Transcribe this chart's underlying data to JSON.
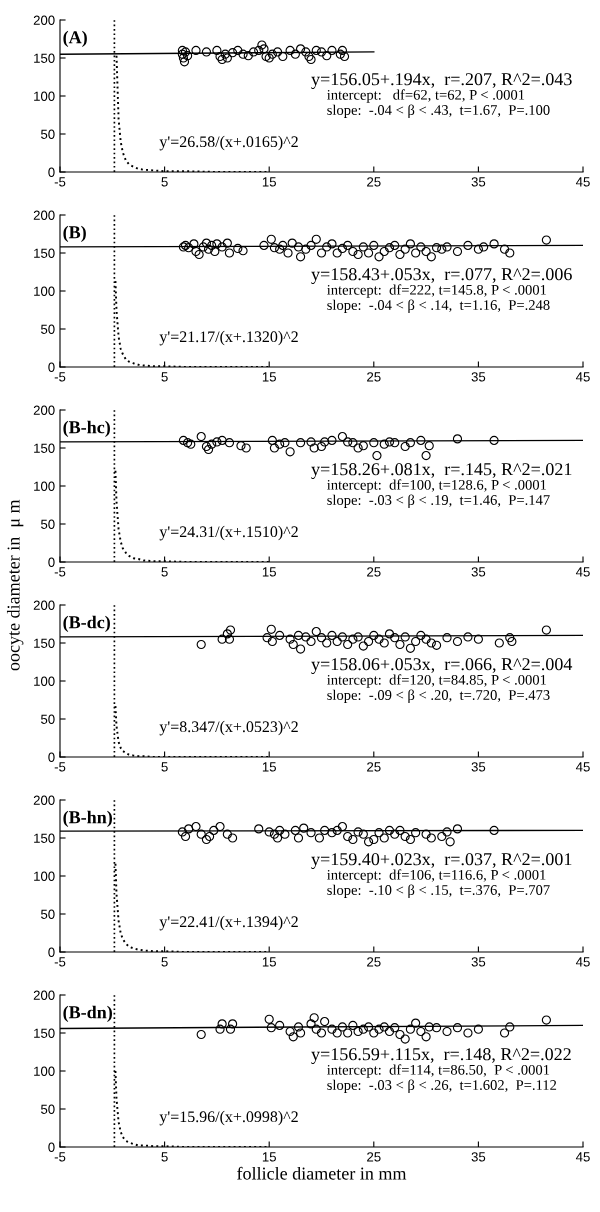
{
  "chart_data": [
    {
      "type": "scatter",
      "title": "(A)",
      "xlim": [
        -5,
        45
      ],
      "ylim": [
        0,
        200
      ],
      "xticks": [
        -5,
        5,
        15,
        25,
        35,
        45
      ],
      "yticks": [
        0,
        50,
        100,
        150,
        200
      ],
      "grid": false,
      "legend": false,
      "annotations": [
        "y=156.05+.194x,  r=.207, R^2=.043",
        "intercept:   df=62, t=62, P < .0001",
        "slope:  -.04 < β < .43,  t=1.67,  P=.100",
        "y'=26.58/(x+.0165)^2"
      ],
      "ref_lines": [
        {
          "axis": "x",
          "value": 0.2,
          "line_style": "dotted",
          "color": "#000000"
        }
      ],
      "series": [
        {
          "marker": "circle",
          "color": "#000000",
          "x": [
            6.7,
            6.7,
            6.8,
            6.9,
            7.0,
            7.2,
            8,
            9,
            10,
            10.3,
            10.5,
            10.8,
            11,
            11.5,
            12,
            12.5,
            13,
            13.5,
            14,
            14.3,
            14.5,
            14.7,
            15,
            15.3,
            15.8,
            16.3,
            17,
            17.5,
            18,
            18.5,
            18.8,
            19,
            19.5,
            20,
            20.5,
            21,
            21.8,
            22,
            22.2
          ],
          "values": [
            155,
            160,
            150,
            145,
            158,
            153,
            160,
            158,
            160,
            152,
            148,
            155,
            150,
            157,
            160,
            155,
            153,
            158,
            160,
            167,
            162,
            152,
            150,
            155,
            158,
            152,
            160,
            155,
            162,
            158,
            152,
            148,
            160,
            158,
            153,
            160,
            155,
            160,
            152
          ]
        },
        {
          "type": "line",
          "line_style": "solid",
          "color": "#000000",
          "x": [
            -5,
            25
          ],
          "values": [
            155,
            158
          ]
        },
        {
          "type": "line",
          "line_style": "dotted",
          "color": "#000000",
          "x": [
            0.4,
            0.6,
            0.8,
            1,
            1.3,
            1.6,
            2,
            2.5,
            3,
            4,
            5,
            7,
            10,
            15
          ],
          "values": [
            153,
            70,
            40,
            26,
            15,
            10,
            7,
            4,
            3,
            2,
            1,
            1,
            0,
            0
          ]
        }
      ]
    },
    {
      "type": "scatter",
      "title": "(B)",
      "xlim": [
        -5,
        45
      ],
      "ylim": [
        0,
        200
      ],
      "xticks": [
        -5,
        5,
        15,
        25,
        35,
        45
      ],
      "yticks": [
        0,
        50,
        100,
        150,
        200
      ],
      "grid": false,
      "legend": false,
      "annotations": [
        "y=158.43+.053x,  r=.077, R^2=.006",
        "intercept:  df=222, t=145.8, P < .0001",
        "slope:  -.04 < β < .14,  t=1.16,  P=.248",
        "y'=21.17/(x+.1320)^2"
      ],
      "ref_lines": [
        {
          "axis": "x",
          "value": 0.2,
          "line_style": "dotted",
          "color": "#000000"
        }
      ],
      "series": [
        {
          "marker": "circle",
          "color": "#000000",
          "x": [
            6.8,
            7,
            7.3,
            7.8,
            8,
            8.3,
            8.7,
            9,
            9.2,
            9.5,
            9.8,
            10,
            10.5,
            11,
            11.2,
            12,
            12.5,
            14.5,
            15.2,
            15.5,
            16,
            16.3,
            16.8,
            17.2,
            17.8,
            18,
            18.5,
            19,
            19.5,
            20,
            20.5,
            21,
            21.5,
            22,
            22.5,
            23,
            23.5,
            24,
            24.5,
            25,
            25.5,
            26,
            26.5,
            27,
            27.5,
            28,
            28.5,
            29,
            29.5,
            30,
            30.5,
            31,
            31.5,
            32,
            33,
            34,
            35,
            35.5,
            36.5,
            37.5,
            38,
            41.5
          ],
          "values": [
            158,
            160,
            157,
            162,
            152,
            148,
            158,
            163,
            155,
            160,
            152,
            162,
            158,
            163,
            150,
            156,
            153,
            160,
            168,
            157,
            155,
            160,
            150,
            163,
            158,
            145,
            155,
            160,
            168,
            150,
            158,
            162,
            150,
            156,
            160,
            152,
            148,
            158,
            150,
            160,
            145,
            152,
            157,
            160,
            148,
            155,
            162,
            150,
            158,
            152,
            145,
            157,
            155,
            158,
            152,
            160,
            155,
            158,
            162,
            155,
            150,
            167
          ]
        },
        {
          "type": "line",
          "line_style": "solid",
          "color": "#000000",
          "x": [
            -5,
            45
          ],
          "values": [
            158,
            160
          ]
        },
        {
          "type": "line",
          "line_style": "dotted",
          "color": "#000000",
          "x": [
            0.3,
            0.4,
            0.6,
            0.8,
            1,
            1.3,
            1.6,
            2,
            2.5,
            3,
            4,
            5,
            7,
            10,
            15
          ],
          "values": [
            113,
            75,
            40,
            24,
            17,
            10,
            7,
            5,
            3,
            2,
            1,
            1,
            0,
            0,
            0
          ]
        }
      ]
    },
    {
      "type": "scatter",
      "title": "(B-hc)",
      "xlim": [
        -5,
        45
      ],
      "ylim": [
        0,
        200
      ],
      "xticks": [
        -5,
        5,
        15,
        25,
        35,
        45
      ],
      "yticks": [
        0,
        50,
        100,
        150,
        200
      ],
      "grid": false,
      "legend": false,
      "annotations": [
        "y=158.26+.081x,  r=.145, R^2=.021",
        "intercept:  df=100, t=128.6, P < .0001",
        "slope:  -.03 < β < .19,  t=1.46,  P=.147",
        "y'=24.31/(x+.1510)^2"
      ],
      "ref_lines": [
        {
          "axis": "x",
          "value": 0.2,
          "line_style": "dotted",
          "color": "#000000"
        }
      ],
      "series": [
        {
          "marker": "circle",
          "color": "#000000",
          "x": [
            6.8,
            7.2,
            7.5,
            8.5,
            9,
            9.2,
            9.5,
            10,
            10.5,
            11.2,
            12.3,
            12.8,
            15.3,
            15.5,
            16,
            16.5,
            17,
            18,
            19,
            19.3,
            20,
            20.3,
            21,
            22,
            22.5,
            23,
            23.5,
            24,
            25,
            25.3,
            26,
            26.5,
            27,
            28,
            28.5,
            29.5,
            30,
            30.3,
            33,
            36.5
          ],
          "values": [
            160,
            157,
            155,
            165,
            152,
            148,
            155,
            158,
            160,
            157,
            153,
            150,
            160,
            150,
            155,
            157,
            145,
            157,
            158,
            150,
            152,
            158,
            160,
            165,
            158,
            157,
            150,
            153,
            157,
            140,
            155,
            158,
            157,
            152,
            157,
            160,
            140,
            153,
            162,
            160
          ]
        },
        {
          "type": "line",
          "line_style": "solid",
          "color": "#000000",
          "x": [
            -5,
            45
          ],
          "values": [
            158,
            160
          ]
        },
        {
          "type": "line",
          "line_style": "dotted",
          "color": "#000000",
          "x": [
            0.3,
            0.4,
            0.6,
            0.8,
            1,
            1.3,
            1.6,
            2,
            2.5,
            3,
            4,
            5,
            7,
            10,
            15
          ],
          "values": [
            120,
            80,
            43,
            27,
            18,
            12,
            8,
            5,
            4,
            2,
            1,
            1,
            0,
            0,
            0
          ]
        }
      ]
    },
    {
      "type": "scatter",
      "title": "(B-dc)",
      "ylabel": "oocyte diameter in  μ m",
      "xlim": [
        -5,
        45
      ],
      "ylim": [
        0,
        200
      ],
      "xticks": [
        -5,
        5,
        15,
        25,
        35,
        45
      ],
      "yticks": [
        0,
        50,
        100,
        150,
        200
      ],
      "grid": false,
      "legend": false,
      "annotations": [
        "y=158.06+.053x,  r=.066, R^2=.004",
        "intercept:  df=120, t=84.85, P < .0001",
        "slope:  -.09 < β < .20,  t=.720,  P=.473",
        "y'=8.347/(x+.0523)^2"
      ],
      "ref_lines": [
        {
          "axis": "x",
          "value": 0.2,
          "line_style": "dotted",
          "color": "#000000"
        }
      ],
      "series": [
        {
          "marker": "circle",
          "color": "#000000",
          "x": [
            8.5,
            10.5,
            11,
            11.2,
            11.3,
            14.8,
            15.2,
            15.3,
            16,
            17,
            17.3,
            17.8,
            18,
            18.5,
            19,
            19.5,
            20,
            20.5,
            21,
            21.5,
            22,
            22.5,
            23,
            23.5,
            24,
            24.5,
            25,
            25.5,
            26,
            26.5,
            27,
            27.5,
            28,
            28.5,
            29,
            29.5,
            30,
            30.5,
            31,
            32,
            33,
            34,
            35,
            37,
            38,
            38.2,
            41.5
          ],
          "values": [
            148,
            155,
            162,
            155,
            167,
            157,
            168,
            152,
            160,
            155,
            148,
            160,
            142,
            158,
            152,
            165,
            157,
            150,
            160,
            152,
            158,
            148,
            155,
            158,
            146,
            152,
            160,
            155,
            150,
            162,
            157,
            148,
            158,
            143,
            152,
            160,
            155,
            150,
            147,
            157,
            152,
            158,
            155,
            150,
            157,
            152,
            167
          ]
        },
        {
          "type": "line",
          "line_style": "solid",
          "color": "#000000",
          "x": [
            -5,
            45
          ],
          "values": [
            158,
            160
          ]
        },
        {
          "type": "line",
          "line_style": "dotted",
          "color": "#000000",
          "x": [
            0.3,
            0.4,
            0.6,
            0.8,
            1,
            1.3,
            1.6,
            2,
            2.5,
            3,
            4,
            5,
            7,
            10,
            15
          ],
          "values": [
            67,
            41,
            20,
            12,
            8,
            5,
            3,
            2,
            1,
            1,
            0,
            0,
            0,
            0,
            0
          ]
        }
      ]
    },
    {
      "type": "scatter",
      "title": "(B-hn)",
      "xlim": [
        -5,
        45
      ],
      "ylim": [
        0,
        200
      ],
      "xticks": [
        -5,
        5,
        15,
        25,
        35,
        45
      ],
      "yticks": [
        0,
        50,
        100,
        150,
        200
      ],
      "grid": false,
      "legend": false,
      "annotations": [
        "y=159.40+.023x,  r=.037, R^2=.001",
        "intercept:  df=106, t=116.6, P < .0001",
        "slope:  -.10 < β < .15,  t=.376,  P=.707",
        "y'=22.41/(x+.1394)^2"
      ],
      "ref_lines": [
        {
          "axis": "x",
          "value": 0.2,
          "line_style": "dotted",
          "color": "#000000"
        }
      ],
      "series": [
        {
          "marker": "circle",
          "color": "#000000",
          "x": [
            6.7,
            7,
            7.3,
            8,
            8.5,
            9,
            9.3,
            9.7,
            10.3,
            11,
            11.5,
            14,
            15,
            15.5,
            15.8,
            16,
            16.5,
            17.5,
            17.8,
            18.3,
            19,
            19.8,
            20.3,
            21,
            21.5,
            22,
            22.5,
            23,
            23.5,
            24,
            24.5,
            25,
            25.5,
            26,
            26.5,
            27,
            27.5,
            28,
            28.5,
            29,
            30,
            30.5,
            31.5,
            32,
            32.3,
            33,
            36.5
          ],
          "values": [
            158,
            152,
            162,
            165,
            155,
            148,
            152,
            160,
            165,
            155,
            150,
            162,
            158,
            155,
            150,
            160,
            155,
            160,
            150,
            163,
            157,
            150,
            160,
            157,
            160,
            165,
            152,
            148,
            158,
            155,
            145,
            148,
            157,
            150,
            160,
            155,
            160,
            152,
            148,
            157,
            155,
            150,
            152,
            158,
            145,
            162,
            160
          ]
        },
        {
          "type": "line",
          "line_style": "solid",
          "color": "#000000",
          "x": [
            -5,
            45
          ],
          "values": [
            159,
            160
          ]
        },
        {
          "type": "line",
          "line_style": "dotted",
          "color": "#000000",
          "x": [
            0.3,
            0.4,
            0.6,
            0.8,
            1,
            1.3,
            1.6,
            2,
            2.5,
            3,
            4,
            5,
            7,
            10,
            15
          ],
          "values": [
            116,
            77,
            41,
            25,
            17,
            11,
            7,
            5,
            3,
            2,
            1,
            1,
            0,
            0,
            0
          ]
        }
      ]
    },
    {
      "type": "scatter",
      "title": "(B-dn)",
      "xlabel": "follicle diameter in mm",
      "xlim": [
        -5,
        45
      ],
      "ylim": [
        0,
        200
      ],
      "xticks": [
        -5,
        5,
        15,
        25,
        35,
        45
      ],
      "yticks": [
        0,
        50,
        100,
        150,
        200
      ],
      "grid": false,
      "legend": false,
      "annotations": [
        "y=156.59+.115x,  r=.148, R^2=.022",
        "intercept:  df=114, t=86.50,  P < .0001",
        "slope:  -.03 < β < .26,  t=1.602,  P=.112",
        "y'=15.96/(x+.0998)^2"
      ],
      "ref_lines": [
        {
          "axis": "x",
          "value": 0.2,
          "line_style": "dotted",
          "color": "#000000"
        }
      ],
      "series": [
        {
          "marker": "circle",
          "color": "#000000",
          "x": [
            8.5,
            10.3,
            10.5,
            11.3,
            11.5,
            15,
            15.2,
            16,
            17,
            17.3,
            17.8,
            18,
            19,
            19.3,
            19.5,
            20,
            20.3,
            21,
            21.5,
            22,
            22.5,
            23,
            23.5,
            24,
            24.5,
            25,
            25.5,
            26,
            26.5,
            27,
            27.5,
            28,
            28.5,
            29,
            29.5,
            30,
            30.3,
            31,
            32,
            33,
            34,
            35,
            37.5,
            38,
            41.5
          ],
          "values": [
            148,
            155,
            162,
            155,
            162,
            168,
            157,
            160,
            152,
            145,
            158,
            150,
            162,
            170,
            155,
            150,
            165,
            155,
            150,
            158,
            150,
            160,
            152,
            155,
            158,
            150,
            155,
            158,
            152,
            157,
            148,
            142,
            155,
            163,
            152,
            145,
            158,
            157,
            152,
            157,
            150,
            155,
            150,
            158,
            167
          ]
        },
        {
          "type": "line",
          "line_style": "solid",
          "color": "#000000",
          "x": [
            -5,
            45
          ],
          "values": [
            156,
            160
          ]
        },
        {
          "type": "line",
          "line_style": "dotted",
          "color": "#000000",
          "x": [
            0.3,
            0.4,
            0.6,
            0.8,
            1,
            1.3,
            1.6,
            2,
            2.5,
            3,
            4,
            5,
            7,
            10,
            15
          ],
          "values": [
            100,
            64,
            33,
            20,
            13,
            8,
            6,
            4,
            2,
            2,
            1,
            1,
            0,
            0,
            0
          ]
        }
      ]
    }
  ]
}
